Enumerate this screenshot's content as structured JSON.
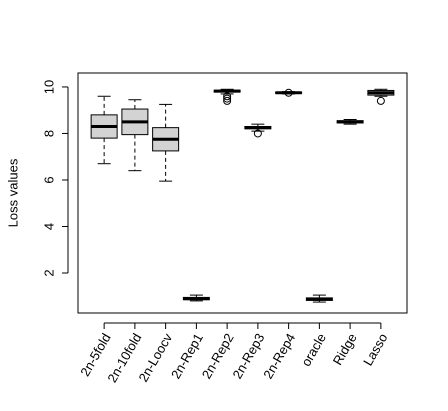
{
  "chart_data": {
    "type": "box",
    "y_label": "Loss values",
    "categories": [
      "2n-5fold",
      "2n-10fold",
      "2n-Loocv",
      "2n-Rep1",
      "2n-Rep2",
      "2n-Rep3",
      "2n-Rep4",
      "oracle",
      "Ridge",
      "Lasso"
    ],
    "boxes": [
      {
        "min": 6.7,
        "q1": 7.8,
        "median": 8.3,
        "q3": 8.8,
        "max": 9.6,
        "outliers": []
      },
      {
        "min": 6.4,
        "q1": 7.95,
        "median": 8.5,
        "q3": 9.05,
        "max": 9.45,
        "outliers": []
      },
      {
        "min": 5.95,
        "q1": 7.25,
        "median": 7.75,
        "q3": 8.25,
        "max": 9.25,
        "outliers": []
      },
      {
        "min": 0.8,
        "q1": 0.85,
        "median": 0.9,
        "q3": 0.95,
        "max": 1.05,
        "outliers": []
      },
      {
        "min": 9.7,
        "q1": 9.78,
        "median": 9.82,
        "q3": 9.86,
        "max": 9.9,
        "outliers": [
          9.6,
          9.5,
          9.4
        ]
      },
      {
        "min": 8.1,
        "q1": 8.2,
        "median": 8.25,
        "q3": 8.3,
        "max": 8.4,
        "outliers": [
          8.0
        ]
      },
      {
        "min": 9.7,
        "q1": 9.72,
        "median": 9.75,
        "q3": 9.78,
        "max": 9.8,
        "outliers": [
          9.75
        ]
      },
      {
        "min": 0.75,
        "q1": 0.82,
        "median": 0.88,
        "q3": 0.93,
        "max": 1.05,
        "outliers": []
      },
      {
        "min": 8.4,
        "q1": 8.45,
        "median": 8.5,
        "q3": 8.55,
        "max": 8.6,
        "outliers": []
      },
      {
        "min": 9.6,
        "q1": 9.65,
        "median": 9.75,
        "q3": 9.85,
        "max": 9.9,
        "outliers": [
          9.4
        ]
      }
    ],
    "color": "#d3d3d3",
    "ylim": [
      0.28,
      10.6
    ],
    "yticks": [
      2,
      4,
      6,
      8,
      10
    ]
  }
}
